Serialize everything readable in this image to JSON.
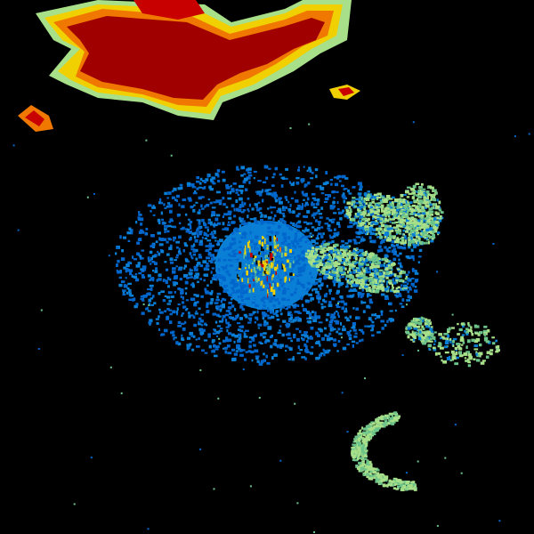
{
  "image": {
    "kind": "radar-reflectivity",
    "background": "#000000",
    "palette": {
      "light_blue": "#0a7fd6",
      "blue": "#0066cc",
      "light_green": "#a8e08a",
      "green": "#6cc48a",
      "yellow": "#f0d000",
      "orange": "#f07800",
      "red": "#c80000",
      "dark_red": "#a00000"
    }
  }
}
